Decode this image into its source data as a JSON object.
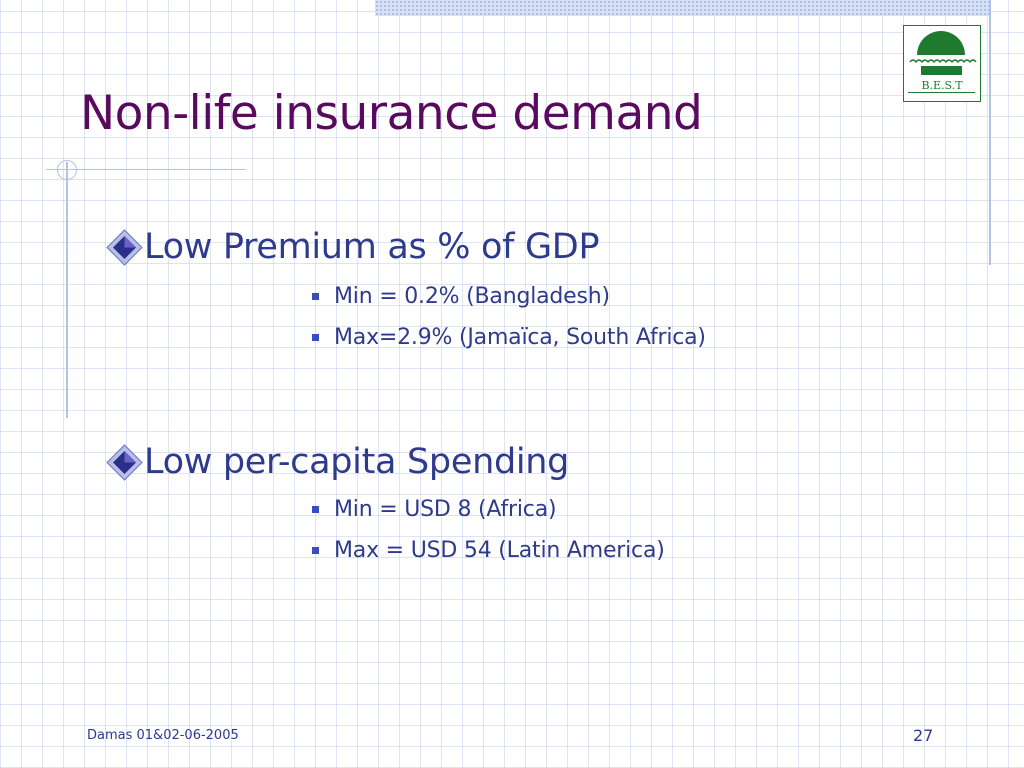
{
  "slide": {
    "title": "Non-life insurance demand",
    "logo_text": "B.E.S.T",
    "sections": [
      {
        "heading": "Low Premium as % of GDP",
        "items": [
          "Min = 0.2% (Bangladesh)",
          "Max=2.9% (Jamaïca, South Africa)"
        ]
      },
      {
        "heading": "Low per-capita Spending",
        "items": [
          "Min = USD 8 (Africa)",
          "Max = USD 54 (Latin America)"
        ]
      }
    ],
    "footer_left": "Damas 01&02-06-2005",
    "page_number": "27"
  },
  "icons": {
    "level1_bullet": "diamond-bullet-icon",
    "level2_bullet": "square-bullet-icon",
    "logo": "best-reinsurance-logo"
  },
  "colors": {
    "title": "#5a0a5e",
    "body_text": "#2e3a8c",
    "logo_green": "#1e7a2e",
    "grid": "#b3c3e6"
  }
}
